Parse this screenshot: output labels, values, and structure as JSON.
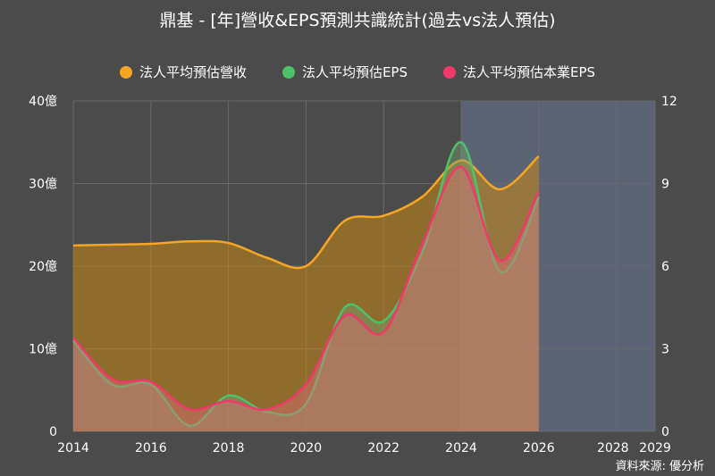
{
  "title": "鼎基 - [年]營收&EPS預測共識統計(過去vs法人預估)",
  "source": "資料來源: 優分析",
  "legend": [
    {
      "label": "法人平均預估營收",
      "color": "#f5a623"
    },
    {
      "label": "法人平均預估EPS",
      "color": "#4cc36a"
    },
    {
      "label": "法人平均預估本業EPS",
      "color": "#f0386b"
    }
  ],
  "colors": {
    "background": "#4b4b4b",
    "forecast_band": "#5b6375",
    "revenue": "#f5a623",
    "eps": "#4cc36a",
    "core_eps": "#f0386b"
  },
  "chart_data": {
    "type": "area",
    "x": [
      2014,
      2015,
      2016,
      2017,
      2018,
      2019,
      2020,
      2021,
      2022,
      2023,
      2024,
      2025,
      2026
    ],
    "xlim": [
      2014,
      2029
    ],
    "x_ticks": [
      "2014",
      "2016",
      "2018",
      "2020",
      "2022",
      "2024",
      "2026",
      "2028",
      "2029"
    ],
    "y_left_ticks": [
      "0",
      "10億",
      "20億",
      "30億",
      "40億"
    ],
    "y_left_lim": [
      0,
      40
    ],
    "y_right_ticks": [
      "0",
      "3",
      "6",
      "9",
      "12"
    ],
    "y_right_lim": [
      0,
      12
    ],
    "forecast_start": 2024,
    "grid": true,
    "legend_position": "top",
    "series": [
      {
        "name": "法人平均預估營收",
        "axis": "left",
        "values": [
          22.5,
          22.6,
          22.7,
          23.0,
          22.8,
          21.0,
          20.0,
          25.5,
          26.1,
          28.4,
          32.8,
          29.3,
          33.3
        ]
      },
      {
        "name": "法人平均預估EPS",
        "axis": "right",
        "values": [
          3.3,
          1.7,
          1.7,
          0.2,
          1.3,
          0.7,
          1.0,
          4.5,
          4.0,
          6.5,
          10.5,
          5.8,
          8.5
        ]
      },
      {
        "name": "法人平均預估本業EPS",
        "axis": "right",
        "values": [
          3.4,
          1.9,
          1.8,
          0.8,
          1.1,
          0.8,
          1.7,
          4.2,
          3.6,
          6.8,
          9.6,
          6.2,
          8.7
        ]
      }
    ]
  }
}
